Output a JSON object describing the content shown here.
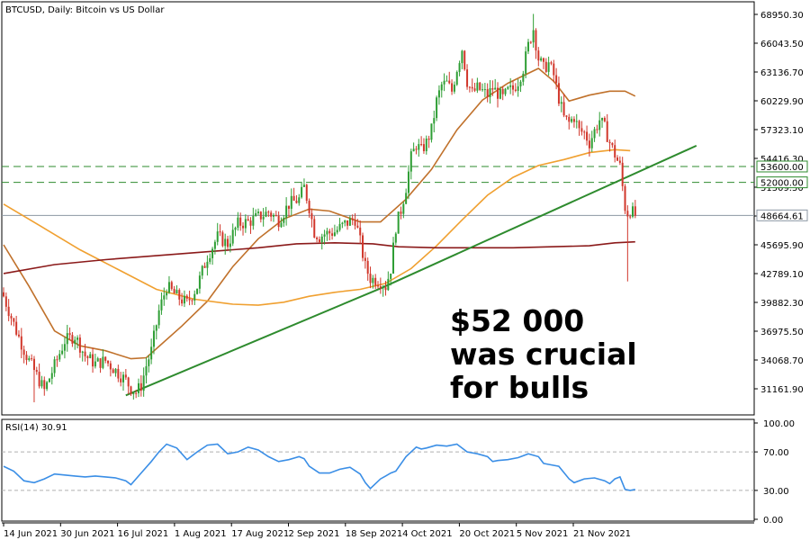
{
  "chart_data": [
    {
      "type": "candlestick",
      "title": "BTCUSD, Daily:  Bitcoin vs US Dollar",
      "ylim": [
        29500,
        70400
      ],
      "y_ticks": [
        "68950.30",
        "66043.50",
        "63136.70",
        "60229.90",
        "57323.10",
        "54416.30",
        "51509.50",
        "48602.70",
        "45695.90",
        "42789.10",
        "39882.30",
        "36975.50",
        "34068.70",
        "31161.90"
      ],
      "x_ticks": [
        "14 Jun 2021",
        "30 Jun 2021",
        "16 Jul 2021",
        "1 Aug 2021",
        "17 Aug 2021",
        "2 Sep 2021",
        "18 Sep 2021",
        "4 Oct 2021",
        "20 Oct 2021",
        "5 Nov 2021",
        "21 Nov 2021"
      ],
      "price_tags": [
        {
          "label": "53600.00",
          "value": 53600,
          "color": "#000000",
          "line": "dashed",
          "line_color": "#2e8b2e"
        },
        {
          "label": "52000.00",
          "value": 52000,
          "color": "#000000",
          "line": "dashed",
          "line_color": "#2e8b2e"
        },
        {
          "label": "48664.61",
          "value": 48664.61,
          "color": "#000000",
          "line": "solid",
          "line_color": "#8c97a3"
        }
      ],
      "close_path": [
        [
          0,
          40500
        ],
        [
          5,
          37000
        ],
        [
          9,
          34500
        ],
        [
          13,
          32500
        ],
        [
          16,
          31000
        ],
        [
          20,
          33500
        ],
        [
          24,
          36000
        ],
        [
          28,
          36500
        ],
        [
          32,
          34500
        ],
        [
          36,
          33700
        ],
        [
          40,
          34000
        ],
        [
          44,
          33000
        ],
        [
          48,
          32000
        ],
        [
          50,
          31200
        ],
        [
          52,
          30800
        ],
        [
          54,
          31500
        ],
        [
          56,
          33500
        ],
        [
          58,
          35000
        ],
        [
          61,
          39000
        ],
        [
          64,
          41500
        ],
        [
          68,
          40500
        ],
        [
          72,
          39800
        ],
        [
          76,
          41500
        ],
        [
          80,
          44500
        ],
        [
          84,
          46500
        ],
        [
          88,
          45800
        ],
        [
          92,
          47800
        ],
        [
          96,
          48000
        ],
        [
          100,
          48500
        ],
        [
          104,
          49000
        ],
        [
          108,
          48200
        ],
        [
          112,
          49800
        ],
        [
          116,
          50300
        ],
        [
          118,
          51500
        ],
        [
          120,
          49500
        ],
        [
          122,
          47000
        ],
        [
          124,
          46500
        ],
        [
          126,
          46800
        ],
        [
          130,
          47000
        ],
        [
          134,
          47800
        ],
        [
          138,
          48300
        ],
        [
          140,
          46000
        ],
        [
          142,
          43500
        ],
        [
          144,
          42300
        ],
        [
          148,
          42000
        ],
        [
          150,
          41500
        ],
        [
          152,
          43300
        ],
        [
          154,
          47500
        ],
        [
          156,
          49200
        ],
        [
          158,
          51500
        ],
        [
          160,
          54500
        ],
        [
          162,
          55800
        ],
        [
          164,
          55200
        ],
        [
          166,
          56000
        ],
        [
          168,
          57300
        ],
        [
          170,
          60200
        ],
        [
          172,
          61800
        ],
        [
          174,
          62000
        ],
        [
          176,
          61200
        ],
        [
          178,
          63500
        ],
        [
          180,
          65500
        ],
        [
          182,
          62200
        ],
        [
          184,
          61000
        ],
        [
          186,
          61500
        ],
        [
          188,
          61200
        ],
        [
          190,
          60800
        ],
        [
          192,
          61500
        ],
        [
          194,
          61000
        ],
        [
          196,
          60500
        ],
        [
          198,
          61200
        ],
        [
          200,
          61400
        ],
        [
          202,
          62200
        ],
        [
          204,
          63500
        ],
        [
          206,
          65800
        ],
        [
          208,
          67500
        ],
        [
          210,
          64500
        ],
        [
          212,
          63500
        ],
        [
          214,
          64000
        ],
        [
          216,
          62800
        ],
        [
          218,
          60500
        ],
        [
          220,
          58500
        ],
        [
          222,
          58000
        ],
        [
          224,
          58600
        ],
        [
          226,
          57200
        ],
        [
          228,
          57000
        ],
        [
          230,
          56000
        ],
        [
          232,
          57200
        ],
        [
          234,
          58300
        ],
        [
          236,
          57500
        ],
        [
          238,
          56000
        ],
        [
          240,
          54800
        ],
        [
          242,
          53600
        ],
        [
          244,
          49500
        ],
        [
          245,
          48900
        ],
        [
          246,
          49200
        ],
        [
          248,
          48664
        ]
      ],
      "wicks": [
        {
          "x_index": 12,
          "low": 29800
        },
        {
          "x_index": 245,
          "low": 42000
        },
        {
          "x_index": 208,
          "high": 69000
        }
      ],
      "series": [
        {
          "color": "#c0712b",
          "values": [
            [
              0,
              45700
            ],
            [
              10,
              41500
            ],
            [
              20,
              37000
            ],
            [
              30,
              35500
            ],
            [
              40,
              35000
            ],
            [
              50,
              34200
            ],
            [
              56,
              34300
            ],
            [
              70,
              37500
            ],
            [
              80,
              40000
            ],
            [
              90,
              43500
            ],
            [
              100,
              46300
            ],
            [
              110,
              48300
            ],
            [
              120,
              49300
            ],
            [
              128,
              49100
            ],
            [
              140,
              48000
            ],
            [
              148,
              48000
            ],
            [
              158,
              50300
            ],
            [
              168,
              53300
            ],
            [
              178,
              57300
            ],
            [
              188,
              60300
            ],
            [
              198,
              62000
            ],
            [
              210,
              63500
            ],
            [
              216,
              62200
            ],
            [
              222,
              60200
            ],
            [
              230,
              60800
            ],
            [
              238,
              61200
            ],
            [
              244,
              61200
            ],
            [
              248,
              60700
            ]
          ]
        },
        {
          "color": "#f0a030",
          "values": [
            [
              0,
              49800
            ],
            [
              15,
              47500
            ],
            [
              30,
              45200
            ],
            [
              45,
              43200
            ],
            [
              60,
              41200
            ],
            [
              75,
              40200
            ],
            [
              90,
              39700
            ],
            [
              100,
              39600
            ],
            [
              110,
              39900
            ],
            [
              120,
              40500
            ],
            [
              130,
              40900
            ],
            [
              140,
              41200
            ],
            [
              150,
              41800
            ],
            [
              160,
              43300
            ],
            [
              170,
              45600
            ],
            [
              180,
              48200
            ],
            [
              190,
              50700
            ],
            [
              200,
              52500
            ],
            [
              210,
              53700
            ],
            [
              220,
              54300
            ],
            [
              230,
              55000
            ],
            [
              240,
              55300
            ],
            [
              246,
              55200
            ]
          ]
        },
        {
          "color": "#8b1a1a",
          "values": [
            [
              0,
              42800
            ],
            [
              20,
              43700
            ],
            [
              40,
              44200
            ],
            [
              60,
              44600
            ],
            [
              80,
              45000
            ],
            [
              100,
              45400
            ],
            [
              115,
              45800
            ],
            [
              130,
              45900
            ],
            [
              145,
              45800
            ],
            [
              155,
              45500
            ],
            [
              170,
              45400
            ],
            [
              185,
              45400
            ],
            [
              200,
              45400
            ],
            [
              215,
              45500
            ],
            [
              230,
              45600
            ],
            [
              240,
              45900
            ],
            [
              248,
              46000
            ]
          ]
        },
        {
          "color": "#2e8b2e",
          "values": [
            [
              48,
              30500
            ],
            [
              148,
              41300
            ],
            [
              272,
              55700
            ]
          ]
        }
      ],
      "annotation": [
        "$52 000",
        "was crucial",
        "for bulls"
      ]
    },
    {
      "type": "line",
      "title": "RSI(14) 30.91",
      "ylim": [
        0,
        100
      ],
      "y_ticks": [
        "100.00",
        "70.00",
        "30.00",
        "0.00"
      ],
      "reference_lines": [
        70,
        30
      ],
      "series": [
        {
          "color": "#3a8ee6",
          "values": [
            [
              0,
              55
            ],
            [
              4,
              50
            ],
            [
              8,
              40
            ],
            [
              12,
              38
            ],
            [
              16,
              42
            ],
            [
              20,
              47
            ],
            [
              24,
              46
            ],
            [
              28,
              45
            ],
            [
              32,
              44
            ],
            [
              36,
              45
            ],
            [
              40,
              44
            ],
            [
              44,
              43
            ],
            [
              48,
              40
            ],
            [
              50,
              36
            ],
            [
              54,
              48
            ],
            [
              58,
              60
            ],
            [
              61,
              70
            ],
            [
              64,
              78
            ],
            [
              68,
              74
            ],
            [
              72,
              62
            ],
            [
              76,
              70
            ],
            [
              80,
              77
            ],
            [
              84,
              78
            ],
            [
              88,
              68
            ],
            [
              92,
              70
            ],
            [
              96,
              75
            ],
            [
              100,
              72
            ],
            [
              104,
              65
            ],
            [
              108,
              60
            ],
            [
              112,
              62
            ],
            [
              116,
              65
            ],
            [
              118,
              63
            ],
            [
              120,
              55
            ],
            [
              124,
              48
            ],
            [
              128,
              48
            ],
            [
              132,
              52
            ],
            [
              136,
              54
            ],
            [
              140,
              47
            ],
            [
              142,
              38
            ],
            [
              144,
              32
            ],
            [
              148,
              42
            ],
            [
              150,
              45
            ],
            [
              152,
              48
            ],
            [
              154,
              50
            ],
            [
              158,
              65
            ],
            [
              162,
              75
            ],
            [
              164,
              73
            ],
            [
              166,
              74
            ],
            [
              170,
              77
            ],
            [
              174,
              76
            ],
            [
              178,
              78
            ],
            [
              182,
              70
            ],
            [
              186,
              68
            ],
            [
              190,
              65
            ],
            [
              192,
              60
            ],
            [
              194,
              61
            ],
            [
              198,
              62
            ],
            [
              202,
              64
            ],
            [
              206,
              68
            ],
            [
              210,
              65
            ],
            [
              212,
              58
            ],
            [
              214,
              57
            ],
            [
              218,
              55
            ],
            [
              222,
              42
            ],
            [
              224,
              38
            ],
            [
              228,
              42
            ],
            [
              232,
              43
            ],
            [
              236,
              40
            ],
            [
              238,
              37
            ],
            [
              240,
              42
            ],
            [
              242,
              44
            ],
            [
              244,
              31
            ],
            [
              246,
              30
            ],
            [
              248,
              31
            ]
          ]
        }
      ]
    }
  ]
}
